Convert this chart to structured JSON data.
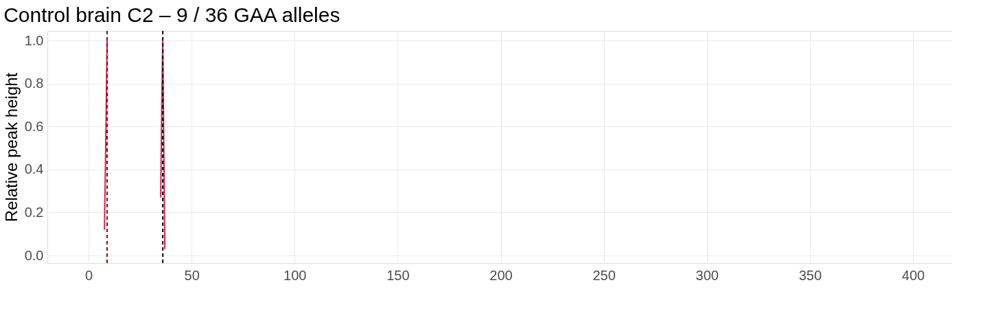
{
  "chart_data": {
    "type": "line",
    "title": "Control brain C2 – 9 / 36 GAA alleles",
    "ylabel": "Relative peak height",
    "x": [
      7.7,
      8.3,
      9.0,
      20,
      35.0,
      35.5,
      36.0,
      36.5,
      37.0
    ],
    "series": [
      {
        "color": "#dc1f4b",
        "values": [
          0.12,
          0.5,
          1.0,
          null,
          0.27,
          0.7,
          1.0,
          0.5,
          0.03
        ]
      }
    ],
    "xlim": [
      -20,
      419
    ],
    "xticks": [
      0,
      50,
      100,
      150,
      200,
      250,
      300,
      350,
      400
    ],
    "ylim": [
      -0.035,
      1.045
    ],
    "yticks": [
      {
        "value": 0,
        "label": "0.0"
      },
      0.2,
      0.4,
      0.6,
      0.8,
      {
        "value": 1,
        "label": "1.0"
      }
    ],
    "ref_lines": [
      {
        "axis": "x",
        "value": 9,
        "color": "#8b0000",
        "line_style": "dashed"
      },
      {
        "axis": "x",
        "value": 36,
        "color": "#000000",
        "line_style": "dashed"
      }
    ],
    "grid": true,
    "marker": "none",
    "line_style": "solid"
  }
}
